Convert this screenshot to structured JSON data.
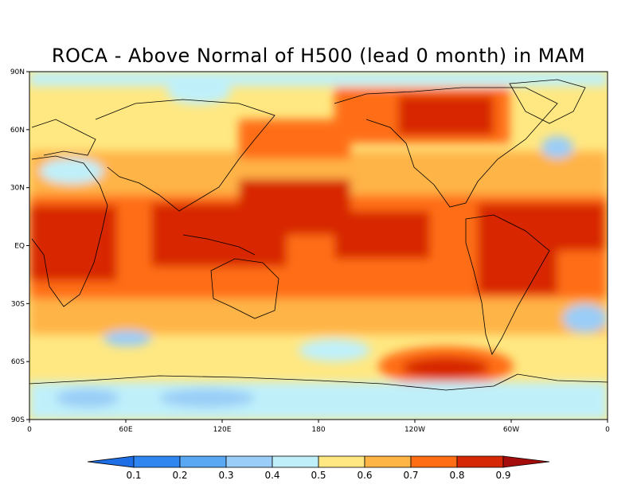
{
  "title": "ROCA - Above Normal of H500 (lead 0 month) in MAM",
  "map": {
    "lat_labels": [
      "90N",
      "60N",
      "30N",
      "EQ",
      "30S",
      "60S",
      "90S"
    ],
    "lon_labels": [
      "0",
      "60E",
      "120E",
      "180",
      "120W",
      "60W",
      "0"
    ],
    "lat_range": [
      -90,
      90
    ],
    "lon_range": [
      0,
      360
    ]
  },
  "colorbar": {
    "levels": [
      "0.1",
      "0.2",
      "0.3",
      "0.4",
      "0.5",
      "0.6",
      "0.7",
      "0.8",
      "0.9"
    ],
    "colors": [
      "#1e6ee6",
      "#2f86f0",
      "#58a8f4",
      "#9acdf7",
      "#bff0fa",
      "#ffe882",
      "#ffb446",
      "#ff6e14",
      "#d72806",
      "#a50c0c"
    ],
    "orientation": "horizontal"
  },
  "palette": {
    "land_outline": "#000000",
    "frame": "#000000"
  }
}
